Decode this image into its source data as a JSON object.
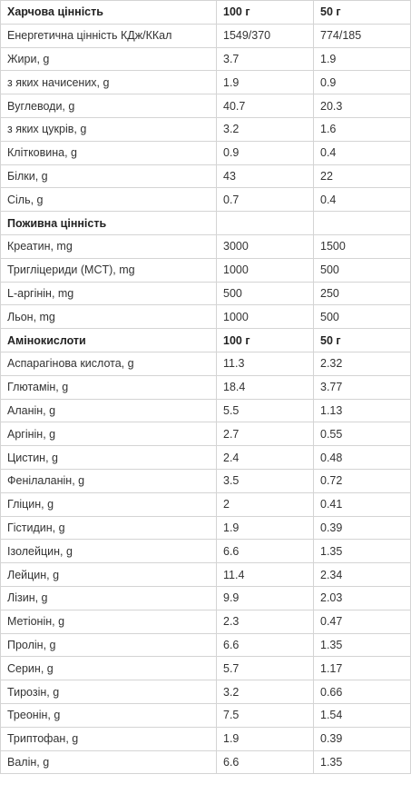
{
  "table": {
    "sections": [
      {
        "header": [
          "Харчова цінність",
          "100 г",
          "50 г"
        ],
        "rows": [
          [
            "Енергетична цінність КДж/ККал",
            "1549/370",
            "774/185"
          ],
          [
            "Жири, g",
            "3.7",
            "1.9"
          ],
          [
            "з яких начисених, g",
            "1.9",
            "0.9"
          ],
          [
            "Вуглеводи, g",
            "40.7",
            "20.3"
          ],
          [
            "з яких цукрів, g",
            "3.2",
            "1.6"
          ],
          [
            "Клітковина, g",
            "0.9",
            "0.4"
          ],
          [
            "Білки, g",
            "43",
            "22"
          ],
          [
            "Сіль, g",
            "0.7",
            "0.4"
          ]
        ]
      },
      {
        "header": [
          "Поживна цінність",
          null,
          null
        ],
        "rows": [
          [
            "Креатин, mg",
            "3000",
            "1500"
          ],
          [
            "Тригліцериди (MCT), mg",
            "1000",
            "500"
          ],
          [
            "L-аргінін, mg",
            "500",
            "250"
          ],
          [
            "Льон, mg",
            "1000",
            "500"
          ]
        ]
      },
      {
        "header": [
          "Амінокислоти",
          "100 г",
          "50 г"
        ],
        "rows": [
          [
            "Аспарагінова кислота, g",
            "11.3",
            "2.32"
          ],
          [
            "Глютамін, g",
            "18.4",
            "3.77"
          ],
          [
            "Аланін, g",
            "5.5",
            "1.13"
          ],
          [
            "Аргінін, g",
            "2.7",
            "0.55"
          ],
          [
            "Цистин, g",
            "2.4",
            "0.48"
          ],
          [
            "Фенілаланін, g",
            "3.5",
            "0.72"
          ],
          [
            "Гліцин, g",
            "2",
            "0.41"
          ],
          [
            "Гістидин, g",
            "1.9",
            "0.39"
          ],
          [
            "Ізолейцин, g",
            "6.6",
            "1.35"
          ],
          [
            "Лейцин, g",
            "11.4",
            "2.34"
          ],
          [
            "Лізин, g",
            "9.9",
            "2.03"
          ],
          [
            "Метіонін, g",
            "2.3",
            "0.47"
          ],
          [
            "Пролін, g",
            "6.6",
            "1.35"
          ],
          [
            "Серин, g",
            "5.7",
            "1.17"
          ],
          [
            "Тирозін, g",
            "3.2",
            "0.66"
          ],
          [
            "Треонін, g",
            "7.5",
            "1.54"
          ],
          [
            "Триптофан, g",
            "1.9",
            "0.39"
          ],
          [
            "Валін, g",
            "6.6",
            "1.35"
          ]
        ]
      }
    ]
  }
}
